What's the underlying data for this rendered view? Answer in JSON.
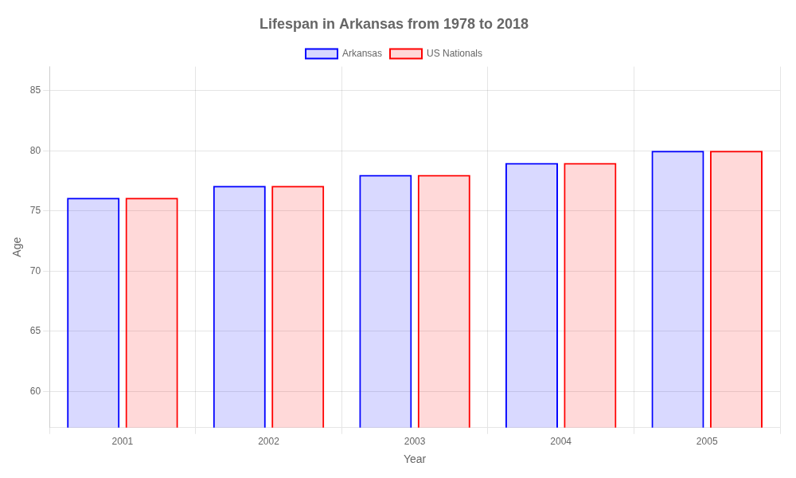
{
  "chart_data": {
    "type": "bar",
    "title": "Lifespan in Arkansas from 1978 to 2018",
    "x_label": "Year",
    "y_label": "Age",
    "categories": [
      "2001",
      "2002",
      "2003",
      "2004",
      "2005"
    ],
    "series": [
      {
        "name": "Arkansas",
        "color": "#0000ff",
        "values": [
          76.1,
          77.1,
          78.0,
          79.0,
          80.0
        ]
      },
      {
        "name": "US Nationals",
        "color": "#ff0000",
        "values": [
          76.1,
          77.1,
          78.0,
          79.0,
          80.0
        ]
      }
    ],
    "ylim": [
      57,
      87
    ],
    "yticks": [
      60,
      65,
      70,
      75,
      80,
      85
    ],
    "grid": true,
    "legend": "top"
  }
}
